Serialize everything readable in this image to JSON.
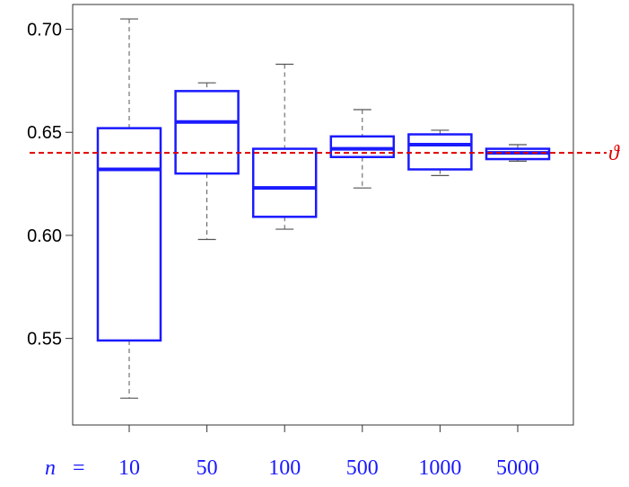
{
  "chart_data": {
    "type": "boxplot",
    "title": "",
    "xlabel": "",
    "ylabel": "",
    "x_prefix_var": "n",
    "x_prefix_eq": "=",
    "categories": [
      "10",
      "50",
      "100",
      "500",
      "1000",
      "5000"
    ],
    "boxes": [
      {
        "min": 0.521,
        "q1": 0.549,
        "median": 0.632,
        "q3": 0.652,
        "max": 0.705
      },
      {
        "min": 0.598,
        "q1": 0.63,
        "median": 0.655,
        "q3": 0.67,
        "max": 0.674
      },
      {
        "min": 0.603,
        "q1": 0.609,
        "median": 0.623,
        "q3": 0.642,
        "max": 0.683
      },
      {
        "min": 0.623,
        "q1": 0.638,
        "median": 0.642,
        "q3": 0.648,
        "max": 0.661
      },
      {
        "min": 0.629,
        "q1": 0.632,
        "median": 0.644,
        "q3": 0.649,
        "max": 0.651
      },
      {
        "min": 0.636,
        "q1": 0.637,
        "median": 0.64,
        "q3": 0.642,
        "max": 0.644
      }
    ],
    "reference_line": {
      "value": 0.64,
      "label": "ϑ",
      "color": "#e00000",
      "style": "dashed"
    },
    "yticks": [
      "0.55",
      "0.60",
      "0.65",
      "0.70"
    ],
    "ylim": [
      0.508,
      0.712
    ],
    "box_color": "#1a1aff",
    "whisker_color": "#555555",
    "grid": false
  }
}
